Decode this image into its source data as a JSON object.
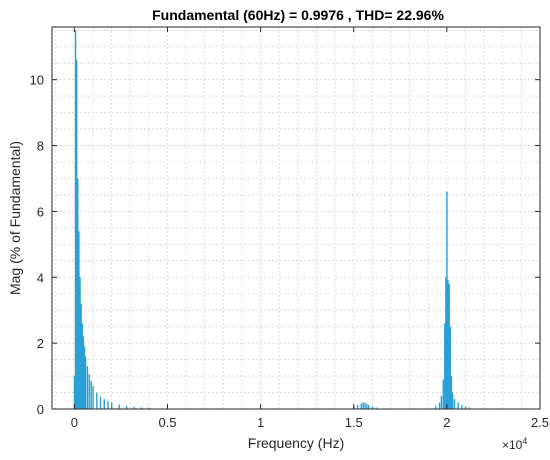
{
  "chart_data": {
    "type": "bar",
    "title": "Fundamental (60Hz) = 0.9976 , THD= 22.96%",
    "xlabel": "Frequency (Hz)",
    "ylabel": "Mag (% of Fundamental)",
    "x_multiplier": "×10",
    "x_multiplier_exp": "4",
    "xlim": [
      -1200,
      25000
    ],
    "ylim": [
      0,
      11.6
    ],
    "grid": true,
    "x_ticks": [
      0,
      5000,
      10000,
      15000,
      20000,
      25000
    ],
    "x_tick_labels": [
      "0",
      "0.5",
      "1",
      "1.5",
      "2",
      "2.5"
    ],
    "y_ticks": [
      0,
      2,
      4,
      6,
      8,
      10
    ],
    "y_tick_labels": [
      "0",
      "2",
      "4",
      "6",
      "8",
      "10"
    ],
    "bar_color": "#2b9fd6",
    "series": [
      {
        "x": [
          0,
          60,
          120,
          180,
          240,
          300,
          360,
          420,
          480,
          540,
          600,
          700,
          800,
          900,
          1000,
          1200,
          1400,
          1600,
          1800,
          2000,
          2400,
          2800,
          3200,
          3600,
          4000,
          5000,
          15000,
          15200,
          15400,
          15500,
          15600,
          15700,
          15800,
          16000,
          16200,
          19400,
          19600,
          19700,
          19800,
          19880,
          19940,
          20000,
          20060,
          20120,
          20180,
          20240,
          20300,
          20400,
          20600,
          20800,
          21000,
          21200
        ],
        "values": [
          1.0,
          11.5,
          10.6,
          7.0,
          5.4,
          4.0,
          3.2,
          2.6,
          2.2,
          1.9,
          1.6,
          1.3,
          1.05,
          0.85,
          0.7,
          0.5,
          0.38,
          0.3,
          0.24,
          0.2,
          0.14,
          0.1,
          0.07,
          0.05,
          0.04,
          0.02,
          0.08,
          0.12,
          0.17,
          0.2,
          0.19,
          0.15,
          0.12,
          0.08,
          0.05,
          0.1,
          0.2,
          0.4,
          0.9,
          2.6,
          4.0,
          6.6,
          3.9,
          3.8,
          2.5,
          1.0,
          0.5,
          0.3,
          0.2,
          0.12,
          0.08,
          0.05
        ]
      }
    ]
  }
}
